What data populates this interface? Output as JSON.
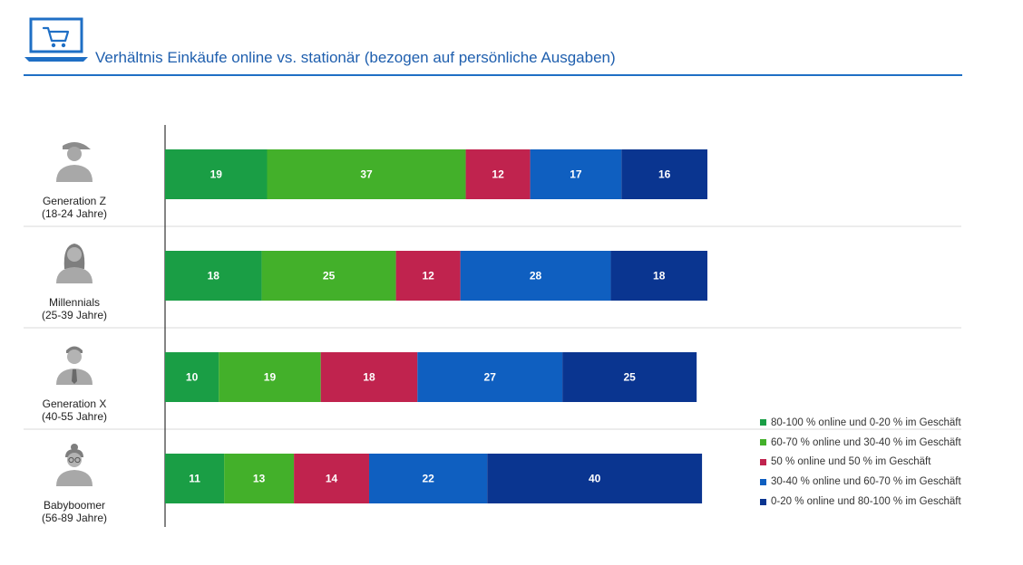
{
  "title": "Verhältnis Einkäufe online vs. stationär (bezogen auf persönliche Ausgaben)",
  "icons": {
    "header": "laptop-shopping-cart-icon"
  },
  "chart_data": {
    "type": "bar",
    "orientation": "horizontal",
    "stacked": true,
    "categories": [
      {
        "name": "Generation Z",
        "range": "(18-24 Jahre)",
        "avatar": "person-cap-icon"
      },
      {
        "name": "Millennials",
        "range": "(25-39 Jahre)",
        "avatar": "person-long-hair-icon"
      },
      {
        "name": "Generation X",
        "range": "(40-55 Jahre)",
        "avatar": "person-tie-icon"
      },
      {
        "name": "Babyboomer",
        "range": "(56-89 Jahre)",
        "avatar": "person-bun-glasses-icon"
      }
    ],
    "series": [
      {
        "name": "80-100 % online und 0-20 % im Geschäft",
        "color": "#1a9e45",
        "values": [
          19,
          18,
          10,
          11
        ]
      },
      {
        "name": "60-70 % online und 30-40 % im Geschäft",
        "color": "#43b02a",
        "values": [
          37,
          25,
          19,
          13
        ]
      },
      {
        "name": "50 % online und 50 % im Geschäft",
        "color": "#c0234e",
        "values": [
          12,
          12,
          18,
          14
        ]
      },
      {
        "name": "30-40 % online und 60-70 % im Geschäft",
        "color": "#0f5fc0",
        "values": [
          17,
          28,
          27,
          22
        ]
      },
      {
        "name": "0-20 % online und 80-100 % im Geschäft",
        "color": "#0a3590",
        "values": [
          16,
          18,
          25,
          40
        ]
      }
    ],
    "xlim": [
      0,
      101
    ],
    "legend": "bottom-right",
    "grid": false
  }
}
